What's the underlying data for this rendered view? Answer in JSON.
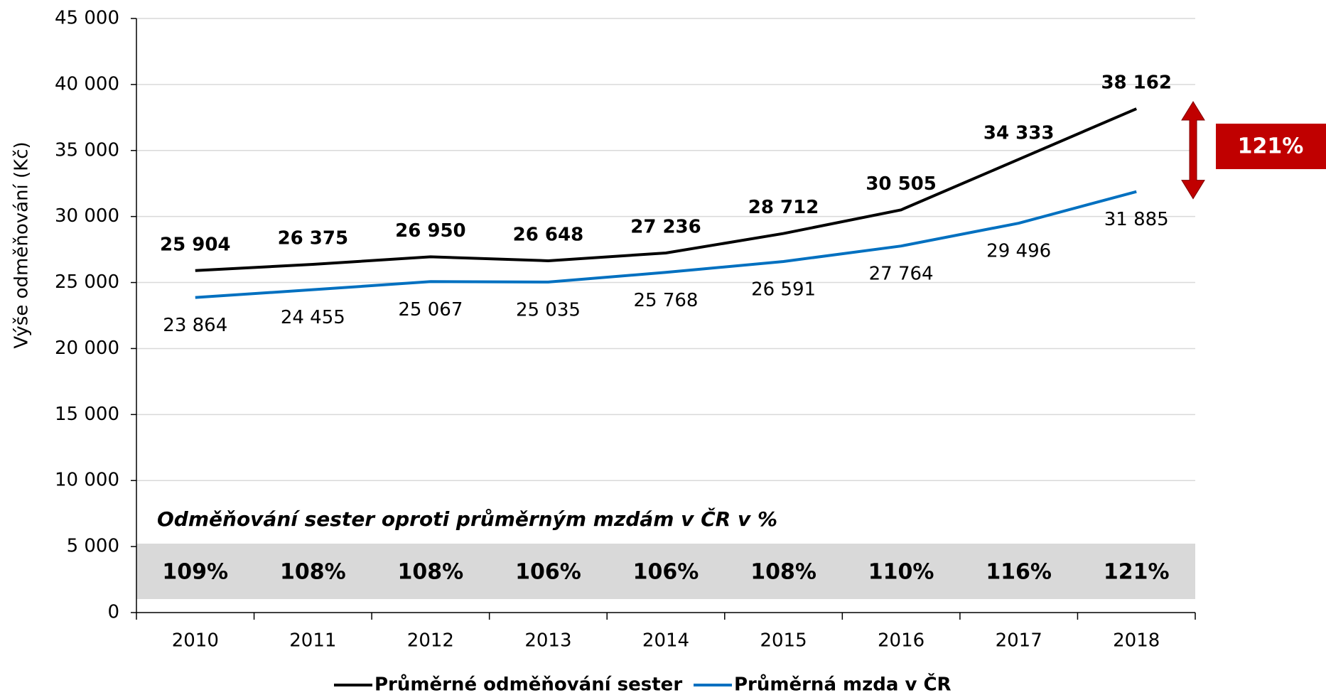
{
  "chart_data": {
    "type": "line",
    "y_label": "Výše odměňování (Kč)",
    "categories": [
      "2010",
      "2011",
      "2012",
      "2013",
      "2014",
      "2015",
      "2016",
      "2017",
      "2018"
    ],
    "series": [
      {
        "name": "Průměrné odměňování sester",
        "color": "#000000",
        "values": [
          25904,
          26375,
          26950,
          26648,
          27236,
          28712,
          30505,
          34333,
          38162
        ],
        "value_labels": [
          "25 904",
          "26 375",
          "26 950",
          "26 648",
          "27 236",
          "28 712",
          "30 505",
          "34 333",
          "38 162"
        ]
      },
      {
        "name": "Průměrná mzda v ČR",
        "color": "#0070c0",
        "values": [
          23864,
          24455,
          25067,
          25035,
          25768,
          26591,
          27764,
          29496,
          31885
        ],
        "value_labels": [
          "23 864",
          "24 455",
          "25 067",
          "25 035",
          "25 768",
          "26 591",
          "27 764",
          "29 496",
          "31 885"
        ]
      }
    ],
    "ratios": {
      "title": "Odměňování sester oproti průměrným mzdám v ČR v %",
      "values": [
        109,
        108,
        108,
        106,
        106,
        108,
        110,
        116,
        121
      ],
      "value_labels": [
        "109%",
        "108%",
        "108%",
        "106%",
        "106%",
        "108%",
        "110%",
        "116%",
        "121%"
      ]
    },
    "annotation": "121%",
    "ylim": [
      0,
      45000
    ],
    "yticks": [
      0,
      {
        "value": 5000,
        "label": "5 000"
      },
      {
        "value": 10000,
        "label": "10 000"
      },
      {
        "value": 15000,
        "label": "15 000"
      },
      {
        "value": 20000,
        "label": "20 000"
      },
      {
        "value": 25000,
        "label": "25 000"
      },
      {
        "value": 30000,
        "label": "30 000"
      },
      {
        "value": 35000,
        "label": "35 000"
      },
      {
        "value": 40000,
        "label": "40 000"
      },
      {
        "value": 45000,
        "label": "45 000"
      }
    ],
    "grid": true,
    "legend": "bottom"
  }
}
